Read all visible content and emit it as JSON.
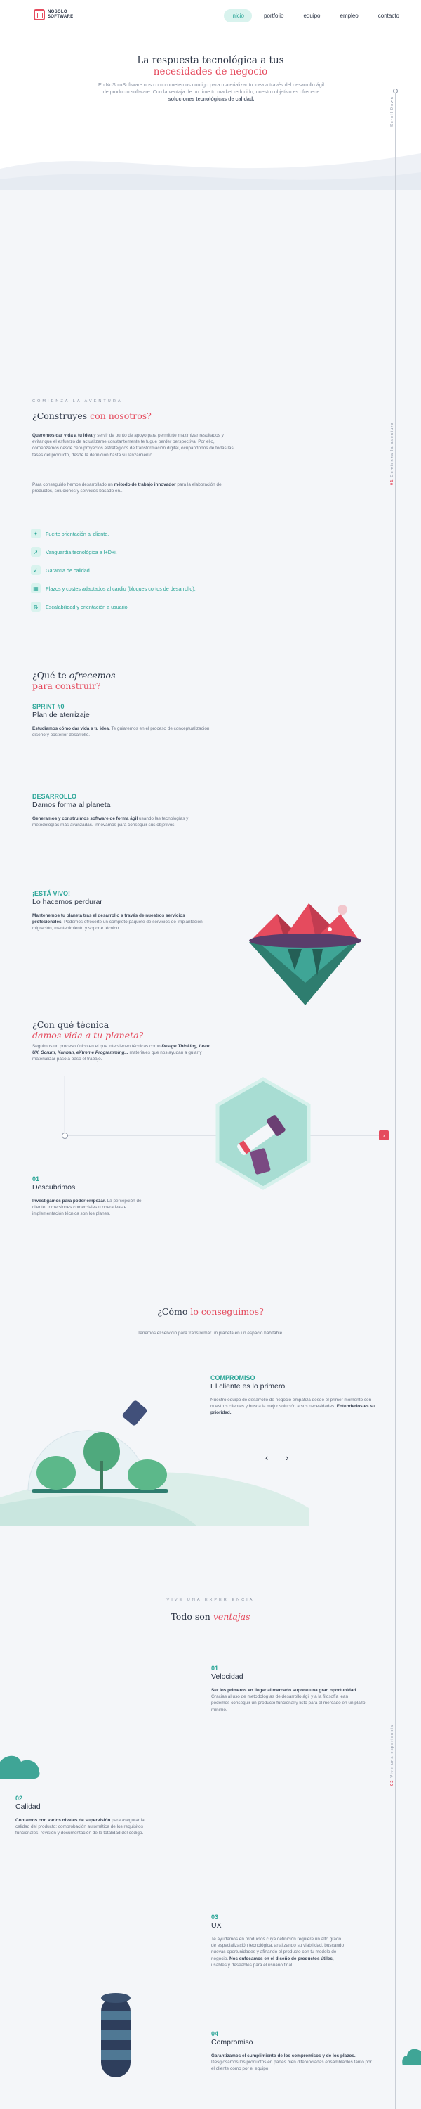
{
  "header": {
    "logo": {
      "line1": "NOSOLO",
      "line2": "SOFTWARE"
    },
    "nav": [
      {
        "label": "inicio",
        "active": true
      },
      {
        "label": "portfolio",
        "active": false
      },
      {
        "label": "equipo",
        "active": false
      },
      {
        "label": "empleo",
        "active": false
      },
      {
        "label": "contacto",
        "active": false
      }
    ]
  },
  "hero": {
    "title_line1": "La respuesta tecnológica a tus",
    "title_line2": "necesidades de negocio",
    "text_start": "En NoSoloSoftware nos comprometemos contigo para materializar tu idea a través del desarrollo ágil de producto software. Con la ventaja de un time to market reducido, nuestro objetivo es ofrecerte",
    "text_bold": "soluciones tecnológicas de calidad."
  },
  "rail": {
    "label1": "Scroll Down",
    "label2_num": "01",
    "label2": "Comienza la aventura",
    "label3_num": "02",
    "label3": "Vive una experiencia"
  },
  "adventure": {
    "eyebrow": "Comienza la aventura",
    "title_a": "¿Construyes",
    "title_b": "con nosotros?",
    "p1_bold": "Queremos dar vida a tu idea",
    "p1": "y servir de punto de apoyo para permitirte maximizar resultados y evitar que el esfuerzo de actualizarse constantemente te fugue perder perspectiva. Por ello, comenzamos desde cero proyectos estratégicos de transformación digital, ocupándonos de todas las fases del producto, desde la definición hasta su lanzamiento.",
    "p2_start": "Para conseguirlo hemos desarrollado un",
    "p2_bold": "método de trabajo innovador",
    "p2_end": "para la elaboración de productos, soluciones y servicios basado en...",
    "features": [
      {
        "icon": "compass-icon",
        "glyph": "✦",
        "label": "Fuerte orientación al cliente."
      },
      {
        "icon": "rocket-icon",
        "glyph": "➚",
        "label": "Vanguardia tecnológica e I+D+i."
      },
      {
        "icon": "shield-icon",
        "glyph": "✓",
        "label": "Garantía de calidad."
      },
      {
        "icon": "calendar-icon",
        "glyph": "▦",
        "label": "Plazos y costes adaptados al cardio (bloques cortos de desarrollo)."
      },
      {
        "icon": "scale-icon",
        "glyph": "⇅",
        "label": "Escalabilidad y orientación a usuario."
      }
    ]
  },
  "offer": {
    "title_a": "¿Qué te",
    "title_b": "ofrecemos",
    "title_c": "para construir?",
    "steps": [
      {
        "tag": "SPRINT #0",
        "name": "Plan de aterrizaje",
        "text_bold": "Estudiamos cómo dar vida a tu idea.",
        "text": "Te guiaremos en el proceso de conceptualización, diseño y posterior desarrollo."
      },
      {
        "tag": "DESARROLLO",
        "name": "Damos forma al planeta",
        "text_bold": "Generamos y construimos software de forma ágil",
        "text": "usando las tecnologías y metodologías más avanzadas. Innovamos para conseguir sus objetivos."
      },
      {
        "tag": "¡ESTÁ VIVO!",
        "name": "Lo hacemos perdurar",
        "text_bold": "Mantenemos tu planeta tras el desarrollo a través de nuestros servicios profesionales.",
        "text": "Podemos ofrecerte un completo paquete de servicios de implantación, migración, mantenimiento y soporte técnico."
      }
    ]
  },
  "technique": {
    "title_a": "¿Con qué técnica",
    "title_b": "damos vida a tu planeta?",
    "text_start": "Seguimos un proceso único en el que intervienen técnicas como",
    "text_bold": "Design Thinking, Lean UX, Scrum, Kanban, eXtreme Programming...",
    "text_end": "materiales que nos ayudan a guiar y materializar paso a paso el trabajo.",
    "step_num": "01",
    "step_name": "Descubrimos",
    "step_text_bold": "Investigamos para poder empezar.",
    "step_text": "La percepción del cliente, inmersiones comerciales u operativas e implementación técnica son los planes."
  },
  "achieve": {
    "title_a": "¿Cómo",
    "title_b": "lo conseguimos?",
    "subtitle": "Tenemos el servicio para transformar un planeta en un espacio habitable.",
    "tag": "COMPROMISO",
    "name": "El cliente es lo primero",
    "text_start": "Nuestro equipo de desarrollo de negocio empatiza desde el primer momento con nuestros clientes y busca la mejor solución a sus necesidades.",
    "text_bold": "Entenderlos es su prioridad.",
    "prev": "‹",
    "next": "›"
  },
  "advantages": {
    "eyebrow": "Vive una experiencia",
    "title_a": "Todo son",
    "title_b": "ventajas",
    "items": [
      {
        "num": "01",
        "name": "Velocidad",
        "text_bold": "Ser los primeros en llegar al mercado supone una gran oportunidad.",
        "text": "Gracias al uso de metodologías de desarrollo ágil y a la filosofía lean podemos conseguir un producto funcional y listo para el mercado en un plazo mínimo."
      },
      {
        "num": "02",
        "name": "Calidad",
        "text_bold": "Contamos con varios niveles de supervisión",
        "text": "para asegurar la calidad del producto: comprobación automática de los requisitos funcionales, revisión y documentación de la totalidad del código."
      },
      {
        "num": "03",
        "name": "UX",
        "text_start": "Te ayudamos en productos cuya definición requiere un alto grado de especialización tecnológica, analizando su viabilidad, buscando nuevas oportunidades y afinando el producto con tu modelo de negocio.",
        "text_bold": "Nos enfocamos en el diseño de productos útiles",
        "text": ", usables y deseables para el usuario final."
      },
      {
        "num": "04",
        "name": "Compromiso",
        "text_bold": "Garantizamos el cumplimiento de los compromisos y de los plazos.",
        "text": "Desglosamos los productos en partes bien diferenciadas ensamblables tanto por el cliente como por el equipo."
      }
    ]
  }
}
